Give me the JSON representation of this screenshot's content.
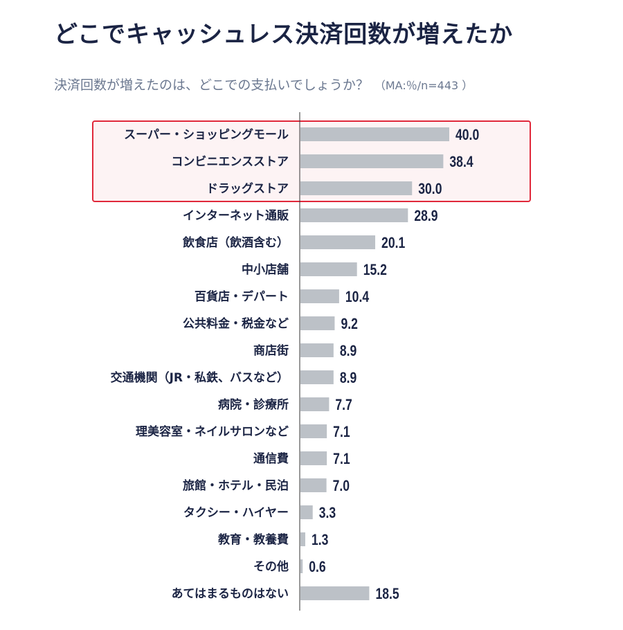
{
  "title": "どこでキャッシュレス決済回数が増えたか",
  "subtitle": "決済回数が増えたのは、どこでの支払いでしょうか？",
  "note": "（MA:％/n=443 ）",
  "colors": {
    "bar": "#bcc1c7",
    "text": "#1b2444",
    "highlight_border": "#e0283a",
    "highlight_fill": "#fdf3f4",
    "axis": "#333333"
  },
  "chart_data": {
    "type": "bar",
    "orientation": "horizontal",
    "categories": [
      "スーパー・ショッピングモール",
      "コンビニエンスストア",
      "ドラッグストア",
      "インターネット通販",
      "飲食店（飲酒含む）",
      "中小店舗",
      "百貨店・デパート",
      "公共料金・税金など",
      "商店街",
      "交通機関（JR・私鉄、バスなど）",
      "病院・診療所",
      "理美容室・ネイルサロンなど",
      "通信費",
      "旅館・ホテル・民泊",
      "タクシー・ハイヤー",
      "教育・教養費",
      "その他",
      "あてはまるものはない"
    ],
    "values": [
      40.0,
      38.4,
      30.0,
      28.9,
      20.1,
      15.2,
      10.4,
      9.2,
      8.9,
      8.9,
      7.7,
      7.1,
      7.1,
      7.0,
      3.3,
      1.3,
      0.6,
      18.5
    ],
    "value_labels": [
      "40.0",
      "38.4",
      "30.0",
      "28.9",
      "20.1",
      "15.2",
      "10.4",
      "9.2",
      "8.9",
      "8.9",
      "7.7",
      "7.1",
      "7.1",
      "7.0",
      "3.3",
      "1.3",
      "0.6",
      "18.5"
    ],
    "highlighted": [
      0,
      1,
      2
    ],
    "unit": "%",
    "xlim": [
      0,
      40
    ],
    "grid": false
  }
}
